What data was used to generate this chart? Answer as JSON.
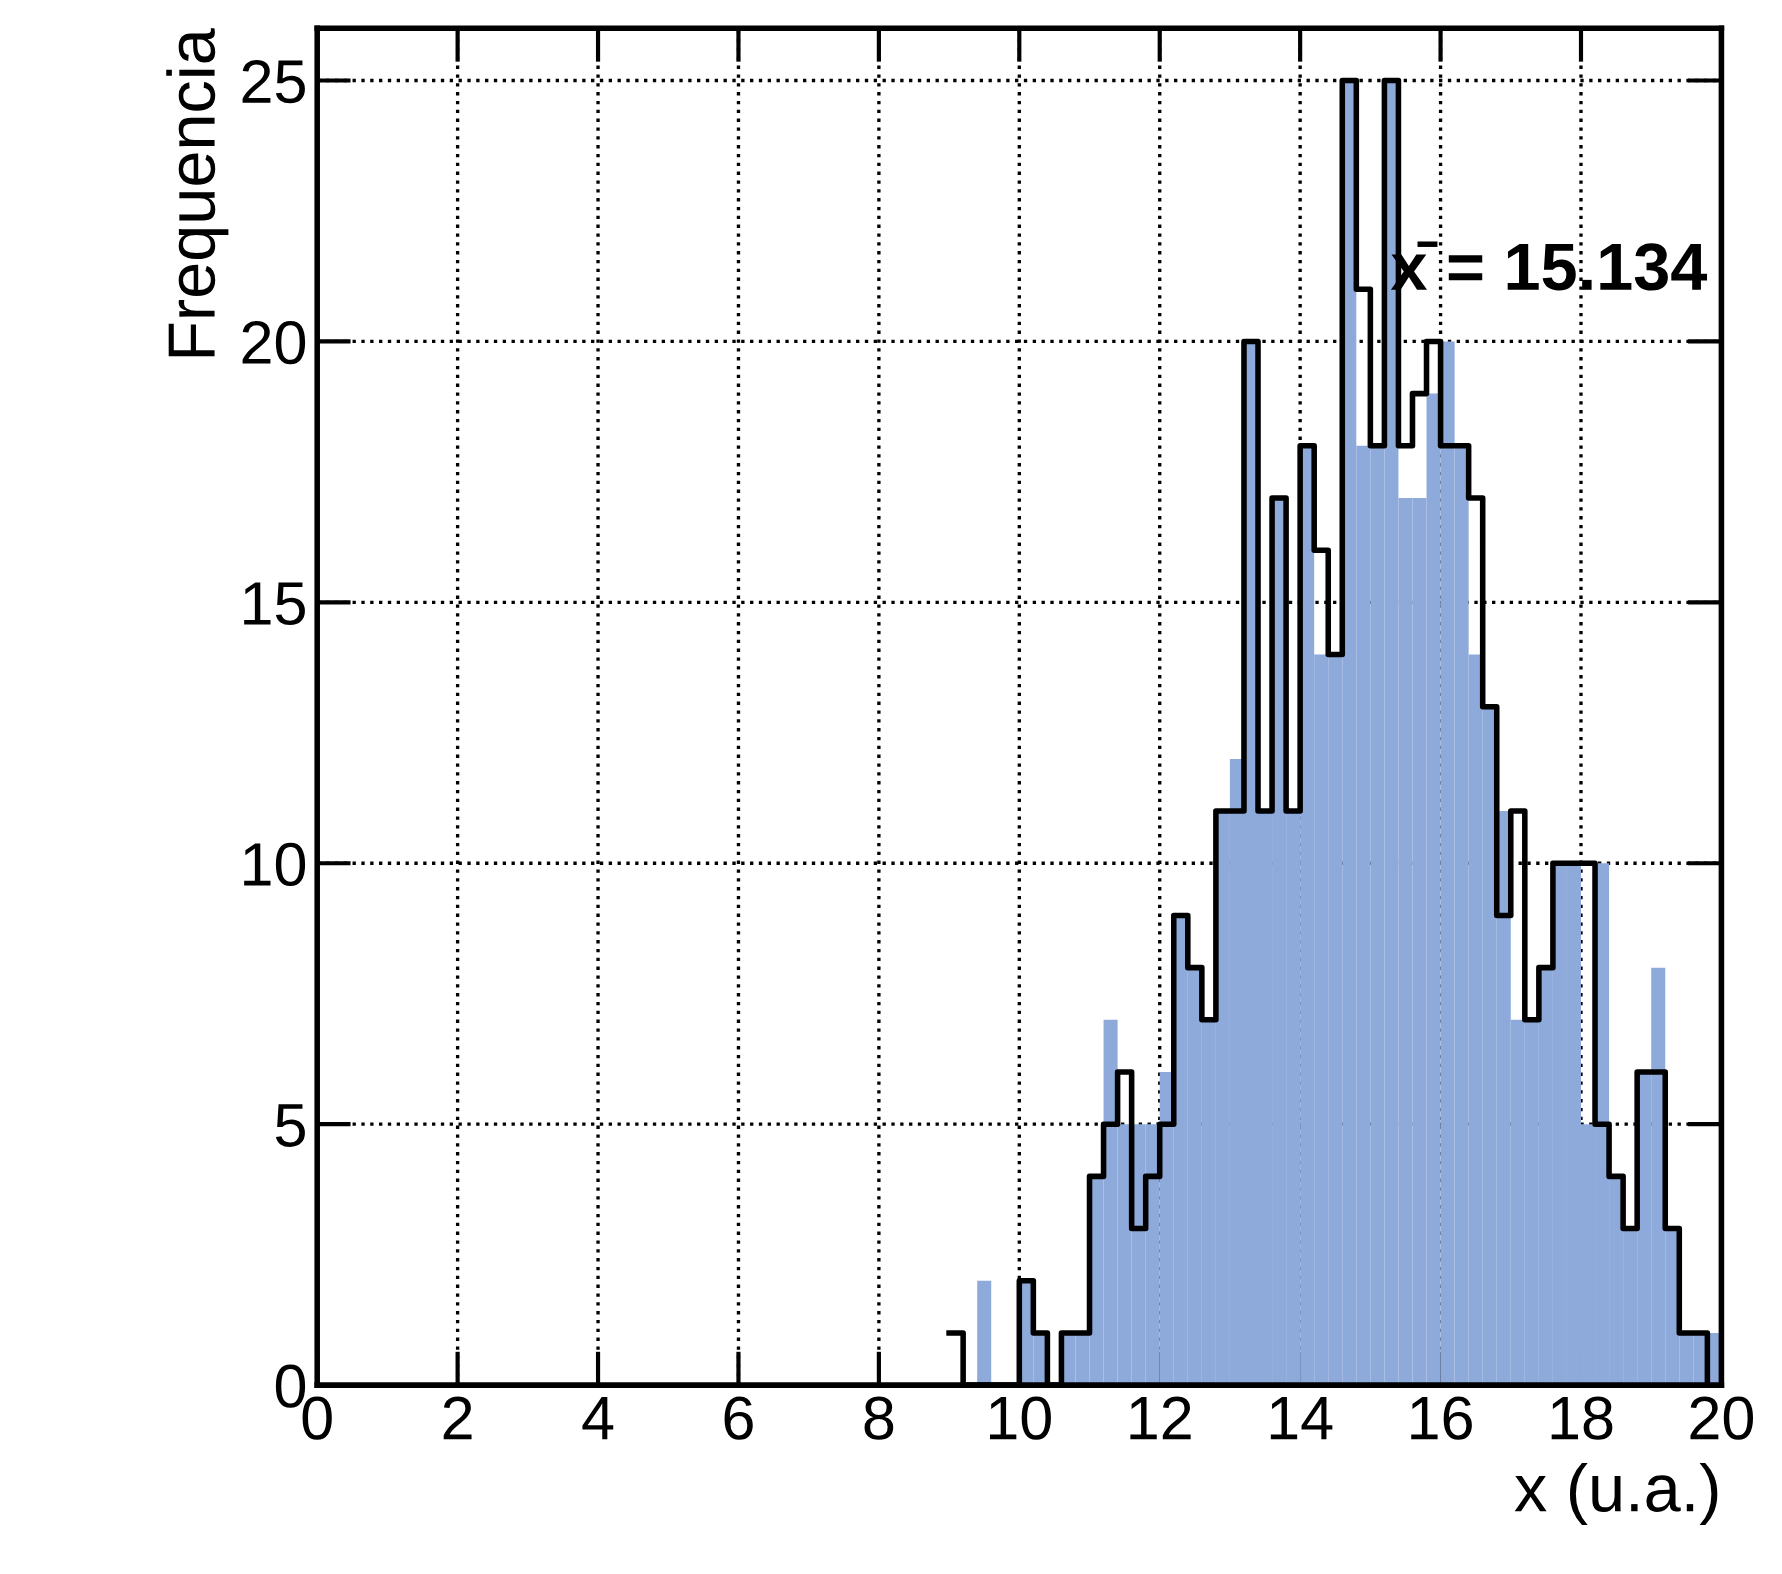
{
  "chart_data": {
    "type": "histogram",
    "xlabel": "x (u.a.)",
    "ylabel": "Frequencia",
    "annotations": [
      "x̄ = 15.134"
    ],
    "bins": [
      9.0,
      9.2,
      9.4,
      9.6,
      9.8,
      10.0,
      10.2,
      10.4,
      10.6,
      10.8,
      11.0,
      11.2,
      11.4,
      11.6,
      11.8,
      12.0,
      12.2,
      12.4,
      12.6,
      12.8,
      13.0,
      13.2,
      13.4,
      13.6,
      13.8,
      14.0,
      14.2,
      14.4,
      14.6,
      14.8,
      15.0,
      15.2,
      15.4,
      15.6,
      15.8,
      16.0,
      16.2,
      16.4,
      16.6,
      16.8,
      17.0,
      17.2,
      17.4,
      17.6,
      17.8,
      18.0,
      18.2,
      18.4,
      18.6,
      18.8,
      19.0,
      19.2,
      19.4,
      19.6,
      19.8,
      20.0
    ],
    "series": [
      {
        "type": "histogram",
        "color": "#8eaadb",
        "values": [
          0,
          0,
          2,
          0,
          0,
          2,
          1,
          0,
          1,
          1,
          4,
          7,
          5,
          5,
          5,
          6,
          9,
          8,
          7,
          11,
          12,
          20,
          11,
          17,
          11,
          18,
          14,
          14,
          25,
          18,
          18,
          25,
          17,
          17,
          19,
          20,
          18,
          14,
          13,
          11,
          7,
          7,
          8,
          10,
          10,
          5,
          10,
          4,
          3,
          6,
          8,
          3,
          1,
          1,
          1
        ]
      },
      {
        "type": "step",
        "color": "#000000",
        "x": [
          9.0,
          9.2,
          9.4,
          9.6,
          9.8,
          10.0,
          10.2,
          10.4,
          10.6,
          10.8,
          11.0,
          11.2,
          11.4,
          11.6,
          11.8,
          12.0,
          12.2,
          12.4,
          12.6,
          12.8,
          13.0,
          13.2,
          13.4,
          13.6,
          13.8,
          14.0,
          14.2,
          14.4,
          14.6,
          14.8,
          15.0,
          15.2,
          15.4,
          15.6,
          15.8,
          16.0,
          16.2,
          16.4,
          16.6,
          16.8,
          17.0,
          17.2,
          17.4,
          17.6,
          17.8,
          18.0,
          18.2,
          18.4,
          18.6,
          18.8,
          19.0,
          19.2,
          19.4,
          19.6,
          19.8
        ],
        "values": [
          1,
          0,
          0,
          0,
          0,
          2,
          1,
          0,
          1,
          1,
          4,
          5,
          6,
          3,
          4,
          5,
          9,
          8,
          7,
          11,
          11,
          20,
          11,
          17,
          11,
          18,
          16,
          14,
          25,
          21,
          18,
          25,
          18,
          19,
          20,
          18,
          18,
          17,
          13,
          9,
          11,
          7,
          8,
          10,
          10,
          10,
          5,
          4,
          3,
          6,
          6,
          3,
          1,
          1,
          0
        ]
      }
    ],
    "xlim": [
      0,
      20
    ],
    "xticks": [
      0,
      2,
      4,
      6,
      8,
      10,
      12,
      14,
      16,
      18,
      20
    ],
    "ylim": [
      0,
      26
    ],
    "yticks": [
      0,
      5,
      10,
      15,
      20,
      25
    ],
    "grid": true
  }
}
